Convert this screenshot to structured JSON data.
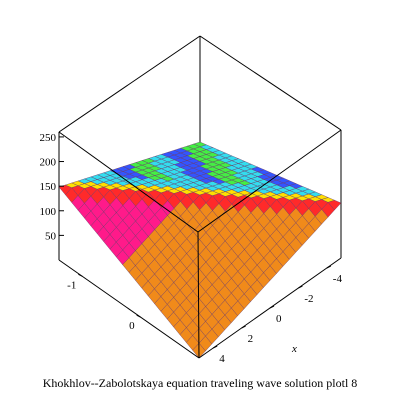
{
  "chart_data": {
    "type": "surface3d",
    "title": "Khokhlov--Zabolotskaya equation traveling wave solution plotl 8",
    "xlabel": "x",
    "ylabel": "",
    "zlabel": "",
    "x_ticks": [
      "-4",
      "-2",
      "0",
      "2",
      "4"
    ],
    "y_ticks": [
      "-1",
      "0"
    ],
    "z_ticks": [
      "250",
      "200",
      "150",
      "100",
      "50"
    ],
    "xlim": [
      -5,
      5
    ],
    "ylim": [
      -1.4,
      1
    ],
    "zlim": [
      0,
      260
    ],
    "grid": false,
    "legend": "none",
    "colors": {
      "magenta": "#ff1a8a",
      "orange": "#f08a1a",
      "red": "#ff2a2a",
      "yellow": "#ffe000",
      "cyan": "#33ddee",
      "green": "#44ee44",
      "blue": "#3355ff",
      "mesh": "#6a3a6a"
    }
  },
  "caption": "Khokhlov--Zabolotskaya equation traveling wave solution plotl 8"
}
